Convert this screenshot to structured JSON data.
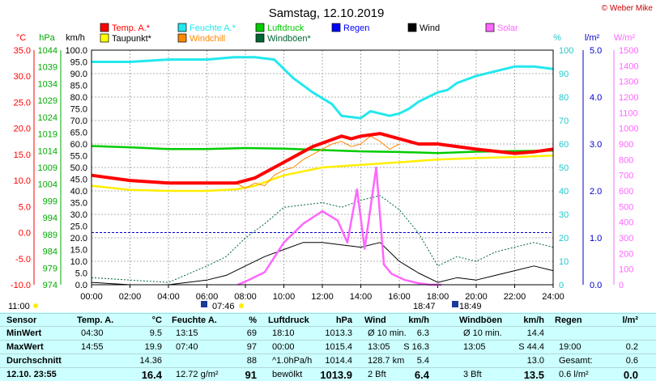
{
  "title": "Samstag, 12.10.2019",
  "copyright": "© Weber Mike",
  "axis_units": {
    "temp": "°C",
    "pressure": "hPa",
    "wind": "km/h",
    "humidity": "%",
    "rain": "l/m²",
    "solar": "W/m²"
  },
  "legend": [
    {
      "label": "Temp. A.*",
      "color": "#ff0000"
    },
    {
      "label": "Feuchte A.*",
      "color": "#22e8ee"
    },
    {
      "label": "Luftdruck",
      "color": "#00cc00"
    },
    {
      "label": "Regen",
      "color": "#0000ff"
    },
    {
      "label": "Wind",
      "color": "#000000"
    },
    {
      "label": "Solar",
      "color": "#ff66ff"
    },
    {
      "label": "Taupunkt*",
      "color": "#ffff00"
    },
    {
      "label": "Windchill",
      "color": "#ff8800"
    },
    {
      "label": "Windböen*",
      "color": "#006633"
    }
  ],
  "sun_events": {
    "moonrise": "11:00",
    "sunrise": "07:46",
    "sunset": "18:47",
    "moonset": "18:49"
  },
  "chart_data": {
    "type": "line",
    "title": "Samstag, 12.10.2019",
    "x_ticks": [
      "00:00",
      "02:00",
      "04:00",
      "06:00",
      "08:00",
      "10:00",
      "12:00",
      "14:00",
      "16:00",
      "18:00",
      "20:00",
      "22:00",
      "24:00"
    ],
    "xlim": [
      0,
      24
    ],
    "axes": {
      "temp": {
        "ticks": [
          "35.0",
          "30.0",
          "25.0",
          "20.0",
          "15.0",
          "10.0",
          "5.0",
          "0.0",
          "-5.0",
          "-10.0"
        ],
        "ylim": [
          -10,
          35
        ]
      },
      "pressure": {
        "ticks": [
          "1044",
          "1039",
          "1034",
          "1029",
          "1024",
          "1019",
          "1014",
          "1009",
          "1004",
          "999",
          "994",
          "989",
          "984",
          "979",
          "974"
        ],
        "ylim": [
          974,
          1044
        ]
      },
      "wind": {
        "ticks": [
          "100.0",
          "95.0",
          "90.0",
          "85.0",
          "80.0",
          "75.0",
          "70.0",
          "65.0",
          "60.0",
          "55.0",
          "50.0",
          "45.0",
          "40.0",
          "35.0",
          "30.0",
          "25.0",
          "20.0",
          "15.0",
          "10.0",
          "5.0",
          "0.0"
        ],
        "ylim": [
          0,
          100
        ]
      },
      "humidity": {
        "ticks": [
          "100",
          "90",
          "80",
          "70",
          "60",
          "50",
          "40",
          "30",
          "20",
          "10",
          "0"
        ],
        "ylim": [
          0,
          100
        ]
      },
      "rain": {
        "ticks": [
          "5.0",
          "4.0",
          "3.0",
          "2.0",
          "1.0",
          "0.0"
        ],
        "ylim": [
          0,
          5
        ]
      },
      "solar": {
        "ticks": [
          "1500",
          "1400",
          "1300",
          "1200",
          "1100",
          "1000",
          "900",
          "800",
          "700",
          "600",
          "500",
          "400",
          "300",
          "200",
          "100",
          "0"
        ],
        "ylim": [
          0,
          1500
        ]
      }
    },
    "series": [
      {
        "name": "Temp. A.*",
        "axis": "temp",
        "x": [
          0,
          2,
          4,
          6,
          7.5,
          8.5,
          10,
          11.5,
          13,
          13.5,
          14,
          15,
          16,
          17,
          18,
          20,
          22,
          23,
          24
        ],
        "y": [
          11.0,
          10.0,
          9.5,
          9.5,
          9.5,
          10.5,
          13.5,
          16.5,
          18.5,
          18.0,
          18.5,
          19.0,
          18.0,
          17.0,
          17.0,
          16.0,
          15.2,
          15.5,
          16.0
        ]
      },
      {
        "name": "Feuchte A.*",
        "axis": "humidity",
        "x": [
          0,
          2,
          4,
          6,
          7.4,
          8.5,
          9.5,
          10.5,
          11.5,
          12.5,
          13,
          14,
          14.5,
          15,
          15.5,
          16,
          16.5,
          17,
          17.5,
          18,
          18.5,
          19,
          20,
          21,
          22,
          23,
          24
        ],
        "y": [
          95,
          95,
          96,
          96,
          97,
          97,
          96,
          88,
          82,
          77,
          72,
          71,
          74,
          73,
          72,
          73,
          75,
          78,
          80,
          82,
          83,
          86,
          89,
          91,
          93,
          93,
          92
        ]
      },
      {
        "name": "Luftdruck",
        "axis": "pressure",
        "x": [
          0,
          2,
          4,
          6,
          8,
          10,
          12,
          14,
          16,
          18,
          20,
          22,
          24
        ],
        "y": [
          1015.4,
          1015.0,
          1014.5,
          1014.5,
          1014.8,
          1014.6,
          1014.2,
          1013.8,
          1013.6,
          1013.3,
          1013.7,
          1013.9,
          1014.0
        ]
      },
      {
        "name": "Taupunkt*",
        "axis": "temp",
        "x": [
          0,
          2,
          4,
          6,
          7.5,
          8.5,
          10,
          12,
          14,
          16,
          18,
          20,
          22,
          24
        ],
        "y": [
          9.0,
          8.2,
          8.0,
          8.0,
          8.3,
          9.0,
          11.0,
          12.5,
          13.0,
          13.5,
          14.0,
          14.3,
          14.5,
          14.8
        ]
      },
      {
        "name": "Windchill",
        "axis": "temp",
        "x": [
          7.5,
          8,
          8.5,
          9,
          9.5,
          10,
          10.5,
          11,
          11.5,
          12,
          12.5,
          13,
          13.5,
          14,
          14.5,
          15,
          15.5,
          16
        ],
        "y": [
          9.5,
          8.5,
          9.5,
          9,
          11,
          12,
          12.5,
          14,
          15,
          16,
          17,
          17.5,
          16.5,
          17,
          18.5,
          17.5,
          16,
          17
        ]
      },
      {
        "name": "Windböen*",
        "axis": "wind",
        "x": [
          0,
          2,
          4,
          6,
          7,
          8,
          9,
          10,
          11,
          12,
          13,
          14,
          15,
          16,
          17,
          18,
          19,
          20,
          21,
          22,
          23,
          24
        ],
        "y": [
          3,
          2,
          1,
          8,
          12,
          20,
          26,
          33,
          34,
          35,
          33,
          36,
          38,
          32,
          22,
          8,
          12,
          10,
          14,
          16,
          18,
          16
        ]
      },
      {
        "name": "Wind",
        "axis": "wind",
        "x": [
          0,
          2,
          4,
          6,
          7,
          8,
          9,
          10,
          11,
          12,
          13,
          14,
          15,
          16,
          17,
          18,
          19,
          20,
          21,
          22,
          23,
          24
        ],
        "y": [
          1,
          0,
          0,
          2,
          4,
          8,
          12,
          15,
          18,
          18,
          17,
          16,
          18,
          10,
          5,
          1,
          3,
          2,
          4,
          6,
          8,
          6
        ]
      },
      {
        "name": "Solar",
        "axis": "solar",
        "x": [
          7.6,
          8,
          9,
          10,
          11,
          12,
          12.8,
          13.3,
          13.8,
          14.2,
          14.8,
          15.2,
          15.6,
          16.3,
          17,
          17.6,
          18.2
        ],
        "y": [
          0,
          20,
          80,
          270,
          390,
          470,
          410,
          270,
          610,
          230,
          750,
          130,
          70,
          30,
          10,
          0,
          0
        ]
      }
    ]
  },
  "table": {
    "headers": [
      {
        "label": "Sensor"
      },
      {
        "label": "Temp. A.",
        "unit": "°C"
      },
      {
        "label": "Feuchte A.",
        "unit": "%"
      },
      {
        "label": "Luftdruck",
        "unit": "hPa"
      },
      {
        "label": "Wind",
        "unit": "km/h"
      },
      {
        "label": "Windböen",
        "unit": "km/h"
      },
      {
        "label": "Regen",
        "unit": "l/m²"
      }
    ],
    "rows": [
      {
        "label": "MinWert",
        "temp_t": "04:30",
        "temp_v": "9.5",
        "hum_t": "13:15",
        "hum_v": "69",
        "pres_t": "18:10",
        "pres_v": "1013.3",
        "wind_t": "Ø 10 min.",
        "wind_v": "6.3",
        "gust_t": "Ø 10 min.",
        "gust_v": "14.4",
        "rain_t": "",
        "rain_v": ""
      },
      {
        "label": "MaxWert",
        "temp_t": "14:55",
        "temp_v": "19.9",
        "hum_t": "07:40",
        "hum_v": "97",
        "pres_t": "00:00",
        "pres_v": "1015.4",
        "wind_t": "13:05",
        "wind_v": "S 16.3",
        "gust_t": "13:05",
        "gust_v": "S 44.4",
        "rain_t": "19:00",
        "rain_v": "0.2"
      },
      {
        "label": "Durchschnitt",
        "temp_t": "",
        "temp_v": "14.36",
        "hum_t": "",
        "hum_v": "88",
        "pres_t": "^1.0hPa/h",
        "pres_v": "1014.4",
        "wind_t": "128.7 km",
        "wind_v": "5.4",
        "gust_t": "",
        "gust_v": "13.0",
        "rain_t": "Gesamt:",
        "rain_v": "0.6"
      },
      {
        "label": "12.10. 23:55",
        "temp_t": "",
        "temp_v": "16.4",
        "hum_t": "12.72 g/m²",
        "hum_v": "91",
        "pres_t": "bewölkt",
        "pres_v": "1013.9",
        "wind_t": "2 Bft",
        "wind_v": "6.4",
        "gust_t": "3 Bft",
        "gust_v": "13.5",
        "rain_t": "0.6 l/m²",
        "rain_v": "0.0"
      }
    ]
  }
}
